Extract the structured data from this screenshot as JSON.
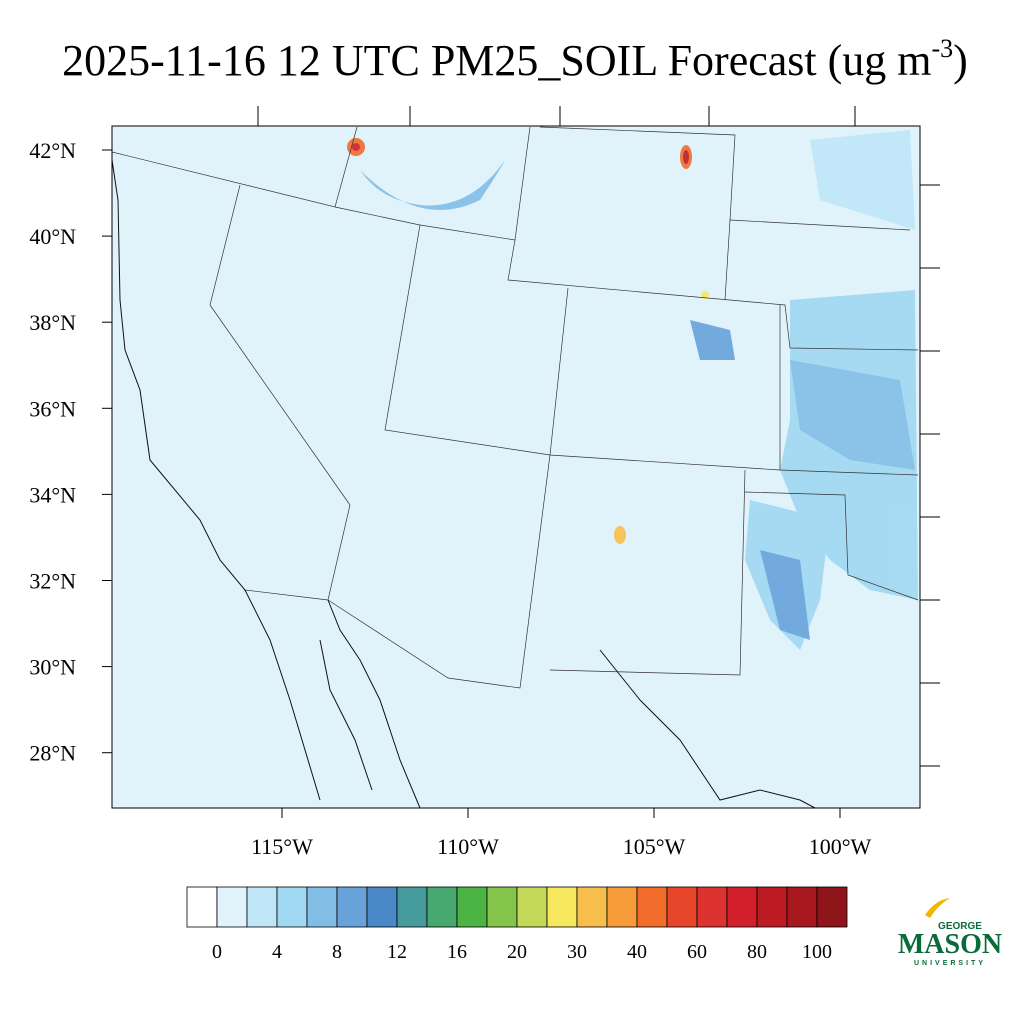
{
  "header": {
    "title": "2025-11-16 12 UTC PM25_SOIL Forecast (ug m",
    "title_superscript": "-3",
    "title_close": ")"
  },
  "map": {
    "lat_labels": [
      "42°N",
      "40°N",
      "38°N",
      "36°N",
      "34°N",
      "32°N",
      "30°N",
      "28°N"
    ],
    "lon_labels": [
      "115°W",
      "110°W",
      "105°W",
      "100°W"
    ],
    "background_color": "#e0f3fb"
  },
  "colorbar": {
    "colors": [
      "#ffffff",
      "#e0f3fb",
      "#bfe6f7",
      "#a0d8f2",
      "#82bde5",
      "#67a3da",
      "#4a88c8",
      "#459b9b",
      "#47a870",
      "#4bb442",
      "#86c54b",
      "#c3d957",
      "#f7e75e",
      "#f8be4b",
      "#f79b3b",
      "#f26c2b",
      "#e8462b",
      "#dc3330",
      "#d21f2b",
      "#bd1b24",
      "#a8181f",
      "#8e1519"
    ],
    "labels": [
      0,
      4,
      8,
      12,
      16,
      20,
      30,
      40,
      60,
      80,
      100
    ]
  },
  "logo": {
    "top": "GEORGE",
    "main": "MASON",
    "bottom": "UNIVERSITY"
  }
}
